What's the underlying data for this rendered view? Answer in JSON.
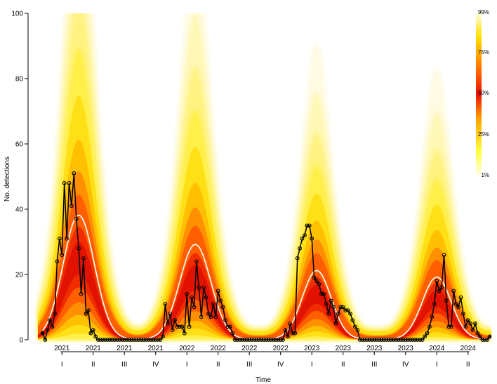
{
  "chart_data": {
    "type": "line",
    "xlabel": "Time",
    "ylabel": "No. detections",
    "ylim": [
      0,
      100
    ],
    "y_ticks": [
      0,
      20,
      40,
      60,
      80,
      100
    ],
    "x_ticks": [
      {
        "year": "2021",
        "quarter": "I"
      },
      {
        "year": "2021",
        "quarter": "II"
      },
      {
        "year": "2021",
        "quarter": "III"
      },
      {
        "year": "2021",
        "quarter": "IV"
      },
      {
        "year": "2022",
        "quarter": "I"
      },
      {
        "year": "2022",
        "quarter": "II"
      },
      {
        "year": "2022",
        "quarter": "III"
      },
      {
        "year": "2022",
        "quarter": "IV"
      },
      {
        "year": "2023",
        "quarter": "I"
      },
      {
        "year": "2023",
        "quarter": "II"
      },
      {
        "year": "2023",
        "quarter": "III"
      },
      {
        "year": "2023",
        "quarter": "IV"
      },
      {
        "year": "2024",
        "quarter": "I"
      },
      {
        "year": "2024",
        "quarter": "II"
      }
    ],
    "x_tick_week_index": [
      8,
      21,
      34,
      47,
      60,
      73,
      86,
      99,
      112,
      125,
      138,
      151,
      164,
      177
    ],
    "x_range": [
      -2,
      190
    ],
    "grid": false,
    "observed": [
      2,
      0,
      3,
      6,
      4,
      8,
      24,
      31,
      26,
      48,
      31,
      48,
      41,
      51,
      37,
      28,
      14,
      25,
      8,
      9,
      2,
      3,
      1,
      0,
      0,
      0,
      0,
      0,
      0,
      0,
      0,
      0,
      0,
      0,
      0,
      0,
      0,
      0,
      0,
      0,
      0,
      0,
      0,
      0,
      0,
      0,
      0,
      0,
      0,
      0,
      1,
      11,
      5,
      8,
      3,
      6,
      4,
      4,
      4,
      2,
      14,
      4,
      13,
      10,
      24,
      16,
      7,
      16,
      13,
      8,
      7,
      11,
      7,
      15,
      12,
      10,
      6,
      4,
      4,
      2,
      0,
      0,
      0,
      0,
      0,
      0,
      0,
      0,
      0,
      0,
      0,
      0,
      0,
      0,
      0,
      0,
      0,
      0,
      0,
      0,
      0,
      3,
      1,
      5,
      2,
      2,
      25,
      28,
      31,
      32,
      35,
      35,
      31,
      19,
      18,
      17,
      14,
      14,
      11,
      8,
      12,
      10,
      5,
      8,
      10,
      10,
      9,
      9,
      8,
      6,
      4,
      3,
      0,
      0,
      0,
      0,
      0,
      0,
      0,
      0,
      0,
      0,
      0,
      0,
      0,
      0,
      0,
      0,
      0,
      0,
      0,
      0,
      0,
      0,
      0,
      0,
      0,
      0,
      0,
      1,
      2,
      4,
      7,
      11,
      18,
      15,
      16,
      26,
      12,
      4,
      4,
      15,
      11,
      10,
      13,
      8,
      4,
      6,
      5,
      3,
      5,
      2,
      1,
      0,
      0,
      0,
      1,
      1,
      1,
      1
    ],
    "series": [
      {
        "curve": "median",
        "color": "#ffffff"
      },
      {
        "curve": "observed",
        "color": "#000000"
      }
    ],
    "legend": {
      "placement": "right",
      "labels": [
        "99%",
        "75%",
        "50%",
        "25%",
        "1%"
      ],
      "colors": [
        "#fffff2",
        "#ffe000",
        "#ff4000",
        "#e02000",
        "#cc0000"
      ]
    }
  }
}
